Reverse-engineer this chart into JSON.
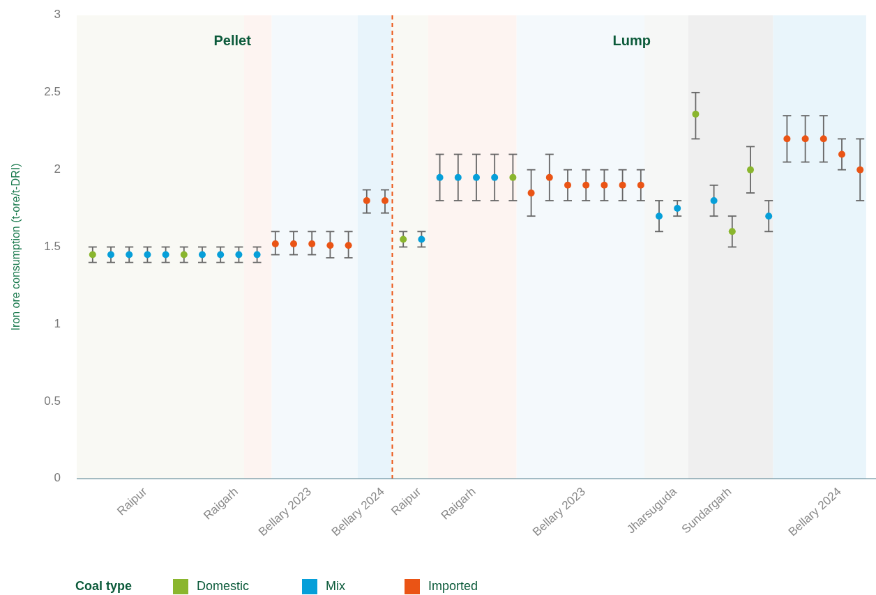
{
  "chart_data": {
    "type": "scatter",
    "ylabel": "Iron ore consumption (t-ore/t-DRI)",
    "legend_title": "Coal type",
    "legend": "bottom",
    "marker": "circle",
    "grid": false,
    "categories": [
      null,
      null,
      null,
      "Raipur",
      null,
      null,
      null,
      null,
      "Raigarh",
      null,
      null,
      null,
      "Bellary 2023",
      null,
      null,
      null,
      "Bellary 2024",
      null,
      "Raipur",
      null,
      null,
      "Raigarh",
      null,
      null,
      null,
      null,
      null,
      "Bellary 2023",
      null,
      null,
      null,
      null,
      "Jharsuguda",
      null,
      null,
      "Sundargarh",
      null,
      null,
      null,
      null,
      null,
      "Bellary 2024",
      null
    ],
    "ylim": [
      0,
      3
    ],
    "yticks": [
      0,
      0.5,
      1,
      1.5,
      2,
      2.5,
      3
    ],
    "series": [
      {
        "name": "Domestic",
        "color": "#8ab62e",
        "values": [
          1.45,
          null,
          null,
          null,
          null,
          1.45,
          null,
          null,
          null,
          null,
          null,
          null,
          null,
          null,
          null,
          null,
          null,
          1.55,
          null,
          null,
          null,
          null,
          null,
          1.95,
          null,
          null,
          null,
          null,
          null,
          null,
          null,
          null,
          null,
          2.36,
          null,
          1.6,
          2.0,
          null,
          null,
          null,
          null,
          null,
          null
        ],
        "errors": [
          [
            1.4,
            1.5
          ],
          null,
          null,
          null,
          null,
          [
            1.4,
            1.5
          ],
          null,
          null,
          null,
          null,
          null,
          null,
          null,
          null,
          null,
          null,
          null,
          [
            1.5,
            1.6
          ],
          null,
          null,
          null,
          null,
          null,
          [
            1.8,
            2.1
          ],
          null,
          null,
          null,
          null,
          null,
          null,
          null,
          null,
          null,
          [
            2.2,
            2.5
          ],
          null,
          [
            1.5,
            1.7
          ],
          [
            1.85,
            2.15
          ],
          null,
          null,
          null,
          null,
          null,
          null
        ]
      },
      {
        "name": "Mix",
        "color": "#069fd9",
        "values": [
          null,
          1.45,
          1.45,
          1.45,
          1.45,
          null,
          1.45,
          1.45,
          1.45,
          1.45,
          null,
          null,
          null,
          null,
          null,
          null,
          null,
          null,
          1.55,
          1.95,
          1.95,
          1.95,
          1.95,
          null,
          null,
          null,
          null,
          null,
          null,
          null,
          null,
          1.7,
          1.75,
          null,
          1.8,
          null,
          null,
          1.7,
          null,
          null,
          null,
          null,
          null
        ],
        "errors": [
          null,
          [
            1.4,
            1.5
          ],
          [
            1.4,
            1.5
          ],
          [
            1.4,
            1.5
          ],
          [
            1.4,
            1.5
          ],
          null,
          [
            1.4,
            1.5
          ],
          [
            1.4,
            1.5
          ],
          [
            1.4,
            1.5
          ],
          [
            1.4,
            1.5
          ],
          null,
          null,
          null,
          null,
          null,
          null,
          null,
          null,
          [
            1.5,
            1.6
          ],
          [
            1.8,
            2.1
          ],
          [
            1.8,
            2.1
          ],
          [
            1.8,
            2.1
          ],
          [
            1.8,
            2.1
          ],
          null,
          null,
          null,
          null,
          null,
          null,
          null,
          null,
          [
            1.6,
            1.8
          ],
          [
            1.7,
            1.8
          ],
          null,
          [
            1.7,
            1.9
          ],
          null,
          null,
          [
            1.6,
            1.8
          ],
          null,
          null,
          null,
          null,
          null
        ]
      },
      {
        "name": "Imported",
        "color": "#ea5415",
        "values": [
          null,
          null,
          null,
          null,
          null,
          null,
          null,
          null,
          null,
          null,
          1.52,
          1.52,
          1.52,
          1.51,
          1.51,
          1.8,
          1.8,
          null,
          null,
          null,
          null,
          null,
          null,
          null,
          1.85,
          1.95,
          1.9,
          1.9,
          1.9,
          1.9,
          1.9,
          null,
          null,
          null,
          null,
          null,
          null,
          null,
          2.2,
          2.2,
          2.2,
          2.1,
          2.0
        ],
        "errors": [
          null,
          null,
          null,
          null,
          null,
          null,
          null,
          null,
          null,
          null,
          [
            1.45,
            1.6
          ],
          [
            1.45,
            1.6
          ],
          [
            1.45,
            1.6
          ],
          [
            1.43,
            1.6
          ],
          [
            1.43,
            1.6
          ],
          [
            1.72,
            1.87
          ],
          [
            1.72,
            1.87
          ],
          null,
          null,
          null,
          null,
          null,
          null,
          null,
          [
            1.7,
            2.0
          ],
          [
            1.8,
            2.1
          ],
          [
            1.8,
            2.0
          ],
          [
            1.8,
            2.0
          ],
          [
            1.8,
            2.0
          ],
          [
            1.8,
            2.0
          ],
          [
            1.8,
            2.0
          ],
          null,
          null,
          null,
          null,
          null,
          null,
          null,
          [
            2.05,
            2.35
          ],
          [
            2.05,
            2.35
          ],
          [
            2.05,
            2.35
          ],
          [
            2.0,
            2.2
          ],
          [
            1.8,
            2.2
          ]
        ]
      }
    ],
    "annotations": [
      "Pellet",
      "Lump"
    ]
  }
}
